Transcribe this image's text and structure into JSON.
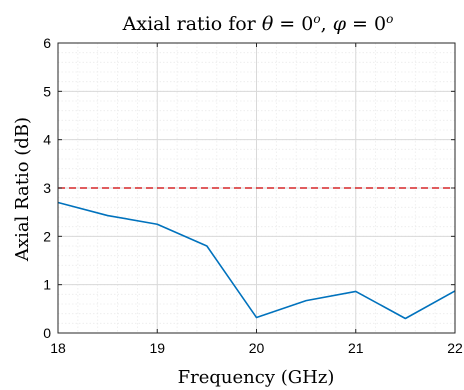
{
  "chart_data": {
    "type": "line",
    "title": "Axial ratio for θ = 0°, φ = 0°",
    "title_parts": {
      "prefix": "Axial ratio for ",
      "theta": "θ",
      "eq1": " = 0",
      "deg": "o",
      "comma": ", ",
      "phi": "φ",
      "eq2": " = 0"
    },
    "xlabel": "Frequency (GHz)",
    "ylabel": "Axial Ratio (dB)",
    "xlim": [
      18,
      22
    ],
    "ylim": [
      0,
      6
    ],
    "xticks": [
      18,
      19,
      20,
      21,
      22
    ],
    "yticks": [
      0,
      1,
      2,
      3,
      4,
      5,
      6
    ],
    "grid": true,
    "minor_grid": true,
    "series": [
      {
        "color": "#0072BD",
        "style": "solid",
        "x": [
          18,
          18.5,
          19,
          19.5,
          20,
          20.5,
          21,
          21.5,
          22
        ],
        "y": [
          2.7,
          2.43,
          2.25,
          1.8,
          0.32,
          0.67,
          0.86,
          0.3,
          0.87
        ]
      },
      {
        "color": "#D62728",
        "style": "dashed",
        "x": [
          18,
          22
        ],
        "y": [
          3,
          3
        ]
      }
    ]
  }
}
